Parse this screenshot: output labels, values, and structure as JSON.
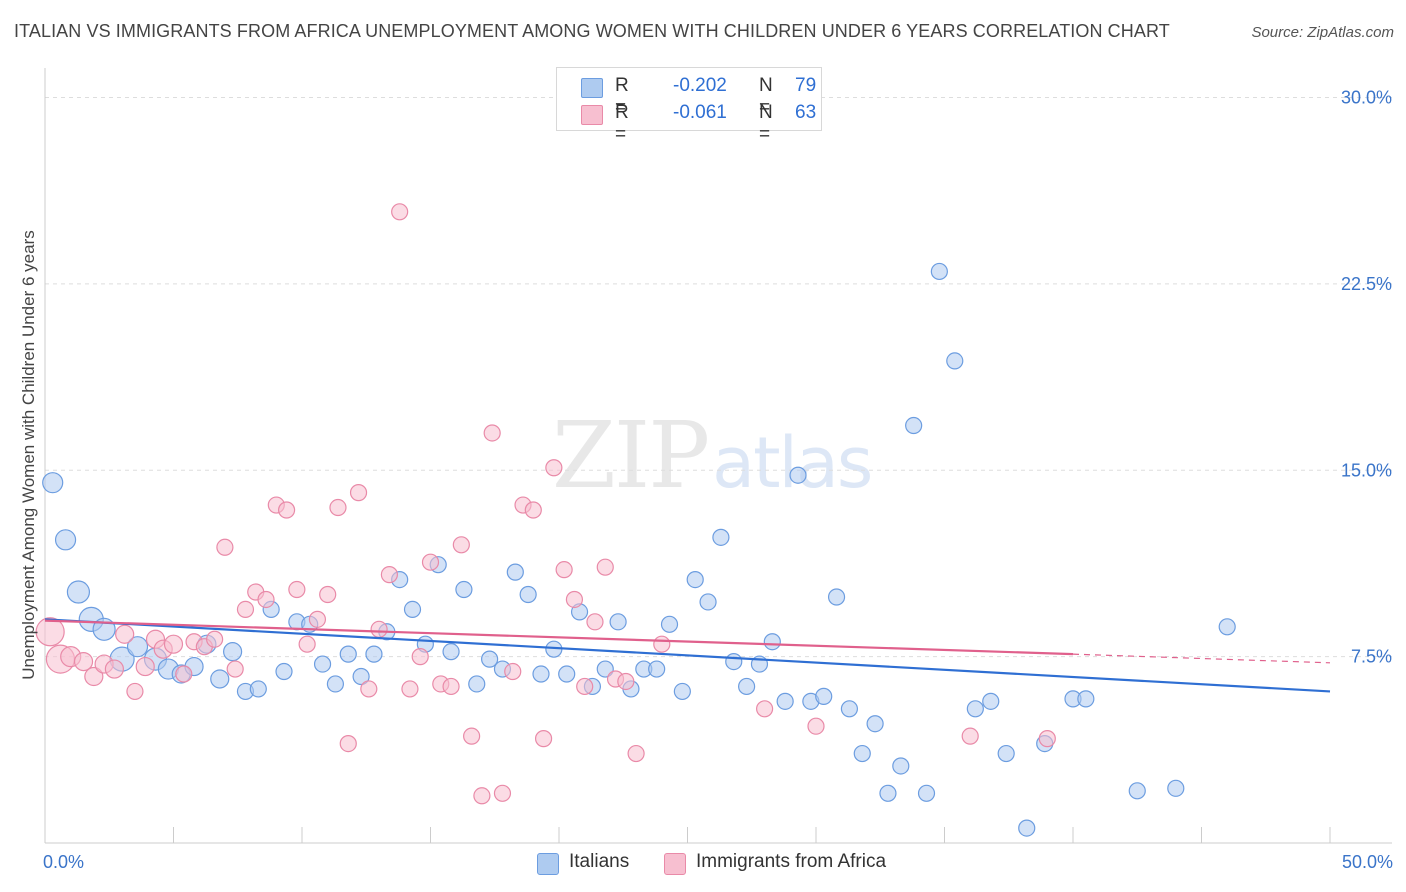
{
  "title": "ITALIAN VS IMMIGRANTS FROM AFRICA UNEMPLOYMENT AMONG WOMEN WITH CHILDREN UNDER 6 YEARS CORRELATION CHART",
  "source": "Source: ZipAtlas.com",
  "watermark": {
    "zip": "ZIP",
    "atlas": "atlas"
  },
  "legend": {
    "italians": {
      "r_label": "R =",
      "r_value": "-0.202",
      "n_label": "N =",
      "n_value": "79"
    },
    "africa": {
      "r_label": "R =",
      "r_value": "-0.061",
      "n_label": "N =",
      "n_value": "63"
    }
  },
  "colors": {
    "italians_fill": "#aecbf0",
    "italians_stroke": "#6c9de0",
    "italians_line": "#2f6fd3",
    "africa_fill": "#f7bfd0",
    "africa_stroke": "#e98aa8",
    "africa_line": "#e0608c",
    "grid": "#dddddd",
    "tick_text": "#3a74c9"
  },
  "chart_data": {
    "type": "scatter",
    "title": "ITALIAN VS IMMIGRANTS FROM AFRICA UNEMPLOYMENT AMONG WOMEN WITH CHILDREN UNDER 6 YEARS CORRELATION CHART",
    "xlabel": "",
    "ylabel": "Unemployment Among Women with Children Under 6 years",
    "xlim": [
      0,
      50
    ],
    "ylim": [
      0,
      30
    ],
    "x_tick_labels": [
      "0.0%",
      "50.0%"
    ],
    "y_ticks": [
      7.5,
      15.0,
      22.5,
      30.0
    ],
    "y_tick_labels": [
      "7.5%",
      "15.0%",
      "22.5%",
      "30.0%"
    ],
    "grid": true,
    "legend_position": "top-center",
    "series": [
      {
        "name": "Italians",
        "r": -0.202,
        "n": 79,
        "trend": {
          "x": [
            0,
            50
          ],
          "y": [
            9.0,
            6.1
          ]
        },
        "points": [
          [
            0.3,
            14.5,
            10
          ],
          [
            0.8,
            12.2,
            10
          ],
          [
            1.3,
            10.1,
            11
          ],
          [
            1.8,
            9.0,
            12
          ],
          [
            2.3,
            8.6,
            11
          ],
          [
            3.0,
            7.4,
            12
          ],
          [
            3.6,
            7.9,
            10
          ],
          [
            4.3,
            7.4,
            11
          ],
          [
            4.8,
            7.0,
            10
          ],
          [
            5.3,
            6.8,
            9
          ],
          [
            5.8,
            7.1,
            9
          ],
          [
            6.3,
            8.0,
            9
          ],
          [
            6.8,
            6.6,
            9
          ],
          [
            7.3,
            7.7,
            9
          ],
          [
            7.8,
            6.1,
            8
          ],
          [
            8.3,
            6.2,
            8
          ],
          [
            8.8,
            9.4,
            8
          ],
          [
            9.3,
            6.9,
            8
          ],
          [
            9.8,
            8.9,
            8
          ],
          [
            10.3,
            8.8,
            8
          ],
          [
            10.8,
            7.2,
            8
          ],
          [
            11.3,
            6.4,
            8
          ],
          [
            11.8,
            7.6,
            8
          ],
          [
            12.3,
            6.7,
            8
          ],
          [
            12.8,
            7.6,
            8
          ],
          [
            13.3,
            8.5,
            8
          ],
          [
            13.8,
            10.6,
            8
          ],
          [
            14.3,
            9.4,
            8
          ],
          [
            14.8,
            8.0,
            8
          ],
          [
            15.3,
            11.2,
            8
          ],
          [
            15.8,
            7.7,
            8
          ],
          [
            16.3,
            10.2,
            8
          ],
          [
            16.8,
            6.4,
            8
          ],
          [
            17.3,
            7.4,
            8
          ],
          [
            17.8,
            7.0,
            8
          ],
          [
            18.3,
            10.9,
            8
          ],
          [
            18.8,
            10.0,
            8
          ],
          [
            19.3,
            6.8,
            8
          ],
          [
            19.8,
            7.8,
            8
          ],
          [
            20.3,
            6.8,
            8
          ],
          [
            20.8,
            9.3,
            8
          ],
          [
            21.3,
            6.3,
            8
          ],
          [
            21.8,
            7.0,
            8
          ],
          [
            22.3,
            8.9,
            8
          ],
          [
            22.8,
            6.2,
            8
          ],
          [
            23.3,
            7.0,
            8
          ],
          [
            23.8,
            7.0,
            8
          ],
          [
            24.3,
            8.8,
            8
          ],
          [
            24.8,
            6.1,
            8
          ],
          [
            25.3,
            10.6,
            8
          ],
          [
            25.8,
            9.7,
            8
          ],
          [
            26.3,
            12.3,
            8
          ],
          [
            26.8,
            7.3,
            8
          ],
          [
            27.3,
            6.3,
            8
          ],
          [
            27.8,
            7.2,
            8
          ],
          [
            28.3,
            8.1,
            8
          ],
          [
            28.8,
            5.7,
            8
          ],
          [
            29.3,
            14.8,
            8
          ],
          [
            29.8,
            5.7,
            8
          ],
          [
            30.3,
            5.9,
            8
          ],
          [
            30.8,
            9.9,
            8
          ],
          [
            31.3,
            5.4,
            8
          ],
          [
            31.8,
            3.6,
            8
          ],
          [
            32.3,
            4.8,
            8
          ],
          [
            32.8,
            2.0,
            8
          ],
          [
            33.3,
            3.1,
            8
          ],
          [
            33.8,
            16.8,
            8
          ],
          [
            34.3,
            2.0,
            8
          ],
          [
            34.8,
            23.0,
            8
          ],
          [
            35.4,
            19.4,
            8
          ],
          [
            36.2,
            5.4,
            8
          ],
          [
            36.8,
            5.7,
            8
          ],
          [
            37.4,
            3.6,
            8
          ],
          [
            38.2,
            0.6,
            8
          ],
          [
            38.9,
            4.0,
            8
          ],
          [
            40.0,
            5.8,
            8
          ],
          [
            40.5,
            5.8,
            8
          ],
          [
            42.5,
            2.1,
            8
          ],
          [
            44.0,
            2.2,
            8
          ],
          [
            46.0,
            8.7,
            8
          ]
        ]
      },
      {
        "name": "Immigrants from Africa",
        "r": -0.061,
        "n": 63,
        "trend": {
          "x": [
            0,
            40
          ],
          "y": [
            8.95,
            7.6
          ]
        },
        "trend_dashed": {
          "x": [
            40,
            50
          ],
          "y": [
            7.6,
            7.25
          ]
        },
        "points": [
          [
            0.2,
            8.5,
            14
          ],
          [
            0.6,
            7.4,
            14
          ],
          [
            1.0,
            7.5,
            10
          ],
          [
            1.5,
            7.3,
            9
          ],
          [
            1.9,
            6.7,
            9
          ],
          [
            2.3,
            7.2,
            9
          ],
          [
            2.7,
            7.0,
            9
          ],
          [
            3.1,
            8.4,
            9
          ],
          [
            3.5,
            6.1,
            8
          ],
          [
            3.9,
            7.1,
            9
          ],
          [
            4.3,
            8.2,
            9
          ],
          [
            4.6,
            7.8,
            9
          ],
          [
            5.0,
            8.0,
            9
          ],
          [
            5.4,
            6.8,
            8
          ],
          [
            5.8,
            8.1,
            8
          ],
          [
            6.2,
            7.9,
            8
          ],
          [
            6.6,
            8.2,
            8
          ],
          [
            7.0,
            11.9,
            8
          ],
          [
            7.4,
            7.0,
            8
          ],
          [
            7.8,
            9.4,
            8
          ],
          [
            8.2,
            10.1,
            8
          ],
          [
            8.6,
            9.8,
            8
          ],
          [
            9.0,
            13.6,
            8
          ],
          [
            9.4,
            13.4,
            8
          ],
          [
            9.8,
            10.2,
            8
          ],
          [
            10.2,
            8.0,
            8
          ],
          [
            10.6,
            9.0,
            8
          ],
          [
            11.0,
            10.0,
            8
          ],
          [
            11.4,
            13.5,
            8
          ],
          [
            11.8,
            4.0,
            8
          ],
          [
            12.2,
            14.1,
            8
          ],
          [
            12.6,
            6.2,
            8
          ],
          [
            13.0,
            8.6,
            8
          ],
          [
            13.4,
            10.8,
            8
          ],
          [
            13.8,
            25.4,
            8
          ],
          [
            14.2,
            6.2,
            8
          ],
          [
            14.6,
            7.5,
            8
          ],
          [
            15.0,
            11.3,
            8
          ],
          [
            15.4,
            6.4,
            8
          ],
          [
            15.8,
            6.3,
            8
          ],
          [
            16.2,
            12.0,
            8
          ],
          [
            16.6,
            4.3,
            8
          ],
          [
            17.0,
            1.9,
            8
          ],
          [
            17.4,
            16.5,
            8
          ],
          [
            17.8,
            2.0,
            8
          ],
          [
            18.2,
            6.9,
            8
          ],
          [
            18.6,
            13.6,
            8
          ],
          [
            19.0,
            13.4,
            8
          ],
          [
            19.4,
            4.2,
            8
          ],
          [
            19.8,
            15.1,
            8
          ],
          [
            20.2,
            11.0,
            8
          ],
          [
            20.6,
            9.8,
            8
          ],
          [
            21.0,
            6.3,
            8
          ],
          [
            21.4,
            8.9,
            8
          ],
          [
            21.8,
            11.1,
            8
          ],
          [
            22.2,
            6.6,
            8
          ],
          [
            22.6,
            6.5,
            8
          ],
          [
            23.0,
            3.6,
            8
          ],
          [
            24.0,
            8.0,
            8
          ],
          [
            28.0,
            5.4,
            8
          ],
          [
            30.0,
            4.7,
            8
          ],
          [
            36.0,
            4.3,
            8
          ],
          [
            39.0,
            4.2,
            8
          ]
        ]
      }
    ]
  },
  "bottom_legend": {
    "italians": "Italians",
    "africa": "Immigrants from Africa"
  }
}
